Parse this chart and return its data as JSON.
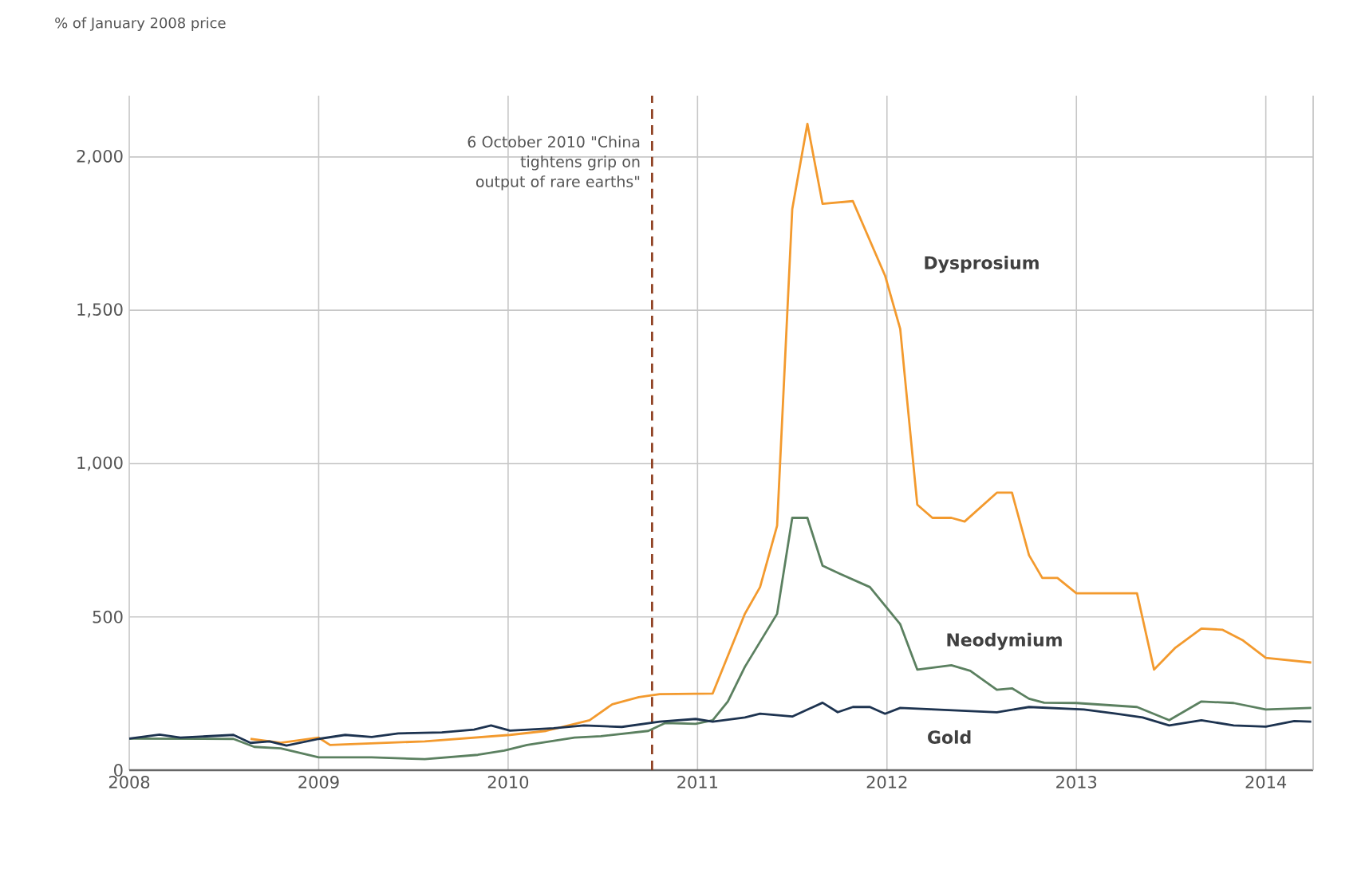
{
  "chart_data": {
    "type": "line",
    "ylabel": "% of January 2008 price",
    "xlim": [
      2008,
      2014.25
    ],
    "xticks": [
      2008,
      2009,
      2010,
      2011,
      2012,
      2013,
      2014
    ],
    "ylim": [
      0,
      2200
    ],
    "yticks": [
      0,
      500,
      {
        "value": 1000,
        "label": "1,000"
      },
      {
        "value": 1500,
        "label": "1,500"
      },
      {
        "value": 2000,
        "label": "2,000"
      }
    ],
    "grid": true,
    "ref_lines": [
      {
        "axis": "x",
        "value": 2010.76,
        "label": "6 October 2010 \"China tightens grip on output of rare earths\"",
        "color": "#8b3a1a",
        "line_style": "dashed"
      }
    ],
    "series": [
      {
        "name": "Dysprosium",
        "color": "#f39a2e",
        "x": [
          2008.64,
          2008.8,
          2009.0,
          2009.06,
          2009.56,
          2010.01,
          2010.2,
          2010.43,
          2010.55,
          2010.69,
          2010.8,
          2011.08,
          2011.25,
          2011.33,
          2011.42,
          2011.5,
          2011.58,
          2011.66,
          2011.82,
          2011.99,
          2012.07,
          2012.16,
          2012.24,
          2012.34,
          2012.41,
          2012.58,
          2012.66,
          2012.75,
          2012.82,
          2012.9,
          2013.0,
          2013.32,
          2013.41,
          2013.52,
          2013.66,
          2013.77,
          2013.88,
          2014.0,
          2014.24
        ],
        "values": [
          102,
          89,
          106,
          82,
          94,
          115,
          128,
          163,
          215,
          238,
          248,
          250,
          510,
          597,
          797,
          1830,
          2108,
          1847,
          1856,
          1613,
          1439,
          866,
          823,
          823,
          811,
          905,
          905,
          701,
          627,
          627,
          577,
          577,
          328,
          398,
          462,
          458,
          423,
          366,
          351
        ]
      },
      {
        "name": "Neodymium",
        "color": "#5b8060",
        "x": [
          2008.0,
          2008.55,
          2008.66,
          2008.8,
          2009.0,
          2009.28,
          2009.56,
          2009.84,
          2009.98,
          2010.1,
          2010.35,
          2010.49,
          2010.74,
          2010.83,
          2010.99,
          2011.08,
          2011.16,
          2011.25,
          2011.42,
          2011.5,
          2011.58,
          2011.66,
          2011.75,
          2011.91,
          2012.07,
          2012.16,
          2012.34,
          2012.44,
          2012.58,
          2012.66,
          2012.75,
          2012.83,
          2013.0,
          2013.32,
          2013.49,
          2013.66,
          2013.83,
          2014.0,
          2014.24
        ],
        "values": [
          103,
          102,
          76,
          71,
          42,
          42,
          36,
          50,
          64,
          82,
          106,
          111,
          128,
          154,
          151,
          163,
          224,
          337,
          510,
          823,
          823,
          667,
          641,
          597,
          476,
          328,
          342,
          324,
          262,
          267,
          233,
          220,
          219,
          206,
          163,
          224,
          219,
          198,
          203
        ]
      },
      {
        "name": "Gold",
        "color": "#1d3350",
        "x": [
          2008.0,
          2008.16,
          2008.27,
          2008.55,
          2008.64,
          2008.74,
          2008.83,
          2009.0,
          2009.14,
          2009.28,
          2009.42,
          2009.65,
          2009.82,
          2009.91,
          2010.01,
          2010.24,
          2010.4,
          2010.6,
          2010.8,
          2010.99,
          2011.08,
          2011.25,
          2011.33,
          2011.5,
          2011.66,
          2011.74,
          2011.82,
          2011.91,
          2011.99,
          2012.07,
          2012.58,
          2012.75,
          2013.04,
          2013.21,
          2013.35,
          2013.49,
          2013.66,
          2013.83,
          2014.0,
          2014.15,
          2014.24
        ],
        "values": [
          103,
          116,
          106,
          115,
          89,
          94,
          80,
          102,
          115,
          108,
          120,
          123,
          132,
          146,
          129,
          137,
          146,
          141,
          158,
          167,
          158,
          172,
          184,
          175,
          220,
          189,
          206,
          206,
          184,
          203,
          189,
          206,
          198,
          184,
          172,
          146,
          163,
          146,
          142,
          160,
          158
        ]
      }
    ]
  }
}
